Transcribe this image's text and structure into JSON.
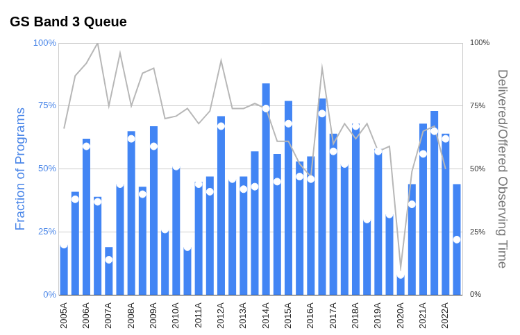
{
  "chart_data": {
    "type": "bar",
    "title": "GS Band 3 Queue",
    "categories": [
      "2005A",
      null,
      "2006A",
      null,
      "2007A",
      null,
      "2008A",
      null,
      "2009A",
      null,
      "2010A",
      null,
      "2011A",
      null,
      "2012A",
      null,
      "2013A",
      null,
      "2014A",
      null,
      "2015A",
      null,
      "2016A",
      null,
      "2017A",
      null,
      "2018A",
      null,
      "2019A",
      null,
      "2020A",
      null,
      "2021A",
      null,
      "2022A",
      null
    ],
    "series": [
      {
        "type": "bar",
        "color": "#4285f4",
        "values": [
          20,
          41,
          62,
          39,
          19,
          44,
          65,
          43,
          67,
          26,
          51,
          19,
          45,
          47,
          71,
          46,
          47,
          57,
          84,
          56,
          77,
          53,
          55,
          78,
          64,
          52,
          68,
          30,
          58,
          32,
          8,
          44,
          68,
          73,
          64,
          44
        ]
      },
      {
        "type": "scatter",
        "marker": "circle",
        "color": "#ffffff",
        "values": [
          20,
          38,
          59,
          37,
          14,
          44,
          62,
          40,
          59,
          26,
          51,
          19,
          44,
          41,
          67,
          46,
          42,
          43,
          74,
          45,
          68,
          47,
          46,
          72,
          57,
          52,
          67,
          30,
          57,
          32,
          8,
          36,
          56,
          65,
          62,
          22
        ]
      },
      {
        "type": "line",
        "color": "#b7b7b7",
        "axis": "y2",
        "values": [
          66,
          87,
          92,
          100,
          75,
          96,
          75,
          88,
          90,
          70,
          71,
          74,
          68,
          73,
          93,
          74,
          74,
          76,
          74,
          61,
          61,
          52,
          47,
          90,
          60,
          68,
          62,
          68,
          57,
          59,
          11,
          49,
          65,
          67,
          50,
          null
        ]
      }
    ],
    "y_label": "Fraction of Programs",
    "y2_label": "Delivered/Offered Observing Time",
    "ylim": [
      0,
      100
    ],
    "yticks": [
      {
        "value": 0,
        "label": "0%"
      },
      {
        "value": 25,
        "label": "25%"
      },
      {
        "value": 50,
        "label": "50%"
      },
      {
        "value": 75,
        "label": "75%"
      },
      {
        "value": 100,
        "label": "100%"
      }
    ],
    "y2lim": [
      0,
      100
    ],
    "y2ticks": [
      {
        "value": 0,
        "label": "0%"
      },
      {
        "value": 25,
        "label": "25%"
      },
      {
        "value": 50,
        "label": "50%"
      },
      {
        "value": 75,
        "label": "75%"
      },
      {
        "value": 100,
        "label": "100%"
      }
    ],
    "grid": true
  }
}
